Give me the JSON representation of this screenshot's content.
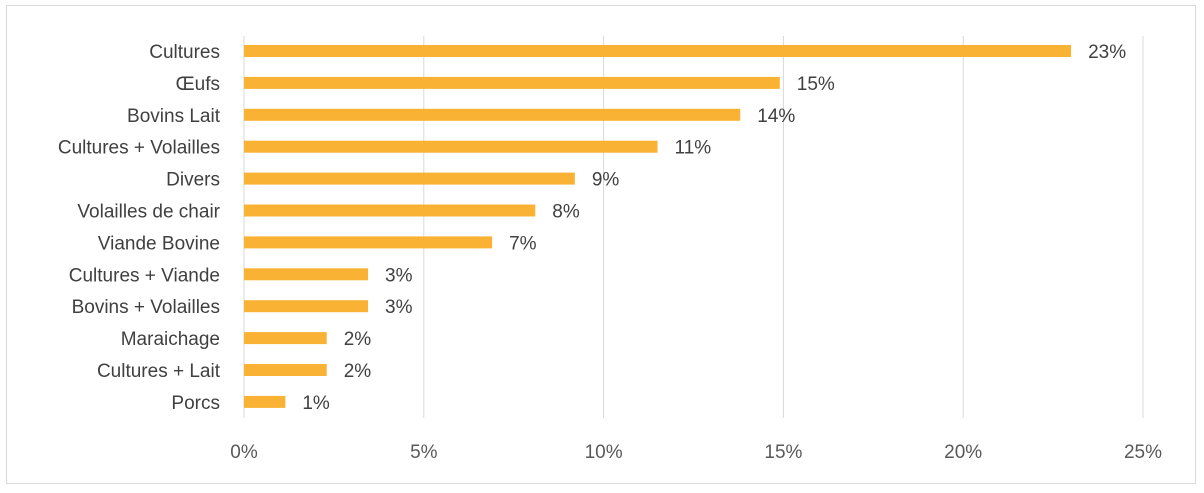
{
  "chart_data": {
    "type": "bar",
    "orientation": "horizontal",
    "categories": [
      "Cultures",
      "Œufs",
      "Bovins Lait",
      "Cultures + Volailles",
      "Divers",
      "Volailles de chair",
      "Viande Bovine",
      "Cultures + Viande",
      "Bovins + Volailles",
      "Maraichage",
      "Cultures + Lait",
      "Porcs"
    ],
    "values": [
      23.0,
      14.9,
      13.8,
      11.5,
      9.2,
      8.1,
      6.9,
      3.45,
      3.45,
      2.3,
      2.3,
      1.15
    ],
    "data_labels": [
      "23%",
      "15%",
      "14%",
      "11%",
      "9%",
      "8%",
      "7%",
      "3%",
      "3%",
      "2%",
      "2%",
      "1%"
    ],
    "xticks": [
      0,
      5,
      10,
      15,
      20,
      25
    ],
    "xtick_labels": [
      "0%",
      "5%",
      "10%",
      "15%",
      "20%",
      "25%"
    ],
    "xlim": [
      0,
      25
    ],
    "title": "",
    "xlabel": "",
    "ylabel": "",
    "grid": "vertical",
    "legend": "none",
    "bar_color": "#F9B234",
    "grid_color": "#D9D9D9"
  }
}
